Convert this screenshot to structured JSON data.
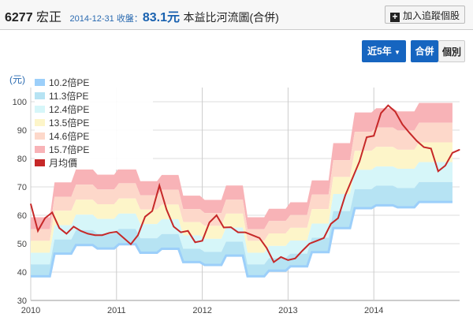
{
  "header": {
    "code": "6277",
    "name": "宏正",
    "date_label": "2014-12-31 收盤：",
    "close_price": "83.1元",
    "chart_title": "本益比河流圖(合併)",
    "track_button": "加入追蹤個股",
    "track_icon": "plus-square-icon"
  },
  "controls": {
    "range": "近5年",
    "range_icon": "caret-down-icon",
    "merge": "合併",
    "individual": "個別",
    "active": "合併"
  },
  "chart_data": {
    "type": "area",
    "ylabel": "(元)",
    "ylim": [
      30,
      105
    ],
    "yticks": [
      "30",
      "40",
      "50",
      "60",
      "70",
      "80",
      "90",
      "100"
    ],
    "xticks": [
      "2010",
      "2011",
      "2012",
      "2013",
      "2014"
    ],
    "grid": true,
    "legend_position": "top-left",
    "x_start": "2010-01",
    "x_frequency": "monthly",
    "bands": [
      {
        "name": "10.2倍PE",
        "color": "#9ccffa",
        "values": [
          38.5,
          46.5,
          49.5,
          48.3,
          49.8,
          46.8,
          48.2,
          43.5,
          42.5,
          45.8,
          38.5,
          40.5,
          42,
          47,
          55.5,
          62.5,
          63.5,
          62.8,
          64.7,
          64.7
        ]
      },
      {
        "name": "11.3倍PE",
        "color": "#b6e3f3",
        "values": [
          42.7,
          51.5,
          54.8,
          53.5,
          55.2,
          51.9,
          53.4,
          48.2,
          47.1,
          50.7,
          42.7,
          44.9,
          46.5,
          52.1,
          61.5,
          69.2,
          70.4,
          69.6,
          71.7,
          71.7
        ]
      },
      {
        "name": "12.4倍PE",
        "color": "#d6f6f9",
        "values": [
          46.8,
          56.5,
          60.2,
          58.7,
          60.6,
          56.9,
          58.6,
          52.9,
          51.7,
          55.7,
          46.8,
          49.2,
          51.1,
          57.1,
          67.5,
          76.0,
          77.2,
          76.4,
          78.7,
          78.7
        ]
      },
      {
        "name": "13.5倍PE",
        "color": "#fdf5c9",
        "values": [
          51.0,
          61.6,
          65.5,
          63.9,
          65.9,
          62.0,
          63.8,
          57.6,
          56.3,
          60.6,
          51.0,
          53.6,
          55.6,
          62.2,
          73.5,
          82.7,
          84.1,
          83.1,
          85.7,
          85.7
        ]
      },
      {
        "name": "14.6倍PE",
        "color": "#fdd8ca",
        "values": [
          55.1,
          66.5,
          70.8,
          69.1,
          71.3,
          67.0,
          69.0,
          62.2,
          60.8,
          65.5,
          55.1,
          58.0,
          60.1,
          67.3,
          79.4,
          89.4,
          90.9,
          89.9,
          92.6,
          92.6
        ]
      },
      {
        "name": "15.7倍PE",
        "color": "#f8b3b7",
        "values": [
          59.3,
          71.6,
          76.2,
          74.3,
          76.6,
          72.0,
          74.2,
          66.9,
          65.4,
          70.5,
          59.3,
          62.3,
          64.6,
          72.3,
          85.4,
          96.2,
          97.7,
          96.6,
          99.6,
          99.6
        ]
      }
    ],
    "band_frequency": "quarterly",
    "series": [
      {
        "name": "月均價",
        "color": "#c62828",
        "values": [
          64,
          54.5,
          59,
          61,
          55.5,
          53.5,
          56,
          54.5,
          53.5,
          53,
          53,
          53.8,
          54.2,
          52,
          49.8,
          53,
          59.5,
          61.5,
          70.5,
          62,
          56,
          54,
          54.5,
          50.5,
          51,
          57.5,
          60,
          55.7,
          55.8,
          54,
          54,
          53,
          52,
          48.5,
          43.5,
          45.3,
          44.2,
          44.8,
          47.5,
          50,
          51,
          52,
          57,
          59,
          67,
          73,
          79,
          87.5,
          88,
          96,
          98.7,
          96.5,
          92,
          89,
          86.2,
          84,
          83.5,
          75.5,
          77.5,
          82,
          83.1
        ]
      }
    ]
  }
}
